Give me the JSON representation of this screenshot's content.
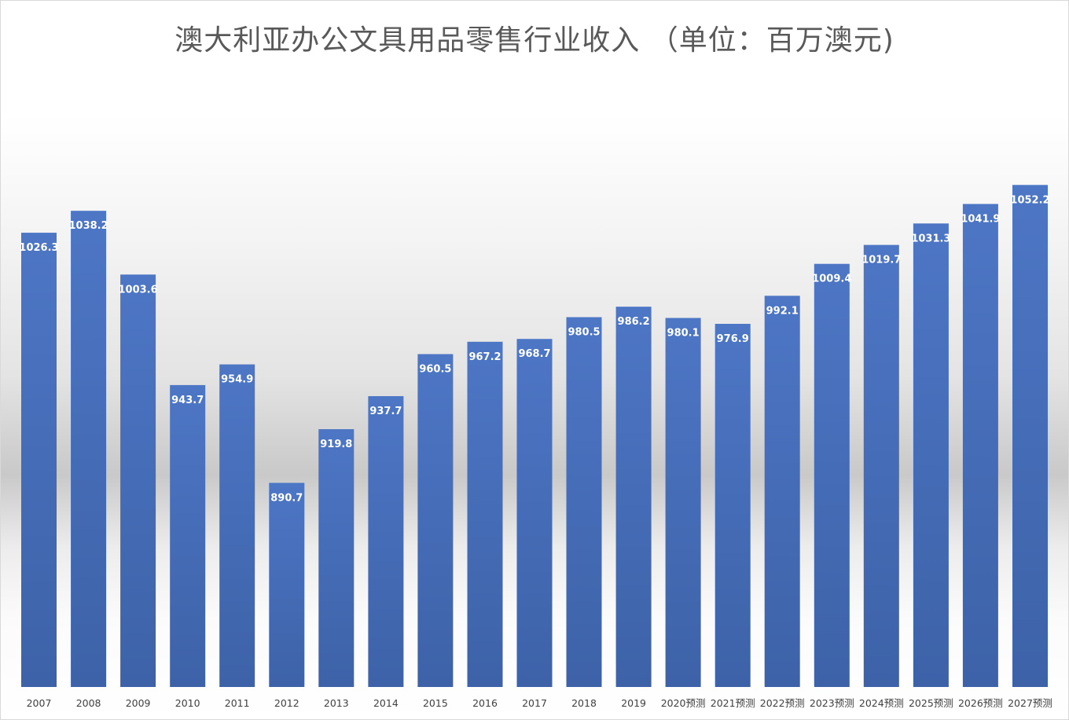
{
  "chart_data": {
    "type": "bar",
    "title": "澳大利亚办公文具用品零售行业收入 （单位：百万澳元)",
    "categories": [
      "2007",
      "2008",
      "2009",
      "2010",
      "2011",
      "2012",
      "2013",
      "2014",
      "2015",
      "2016",
      "2017",
      "2018",
      "2019",
      "2020预测",
      "2021预测",
      "2022预测",
      "2023预测",
      "2024预测",
      "2025预测",
      "2026预测",
      "2027预测"
    ],
    "values": [
      1026.3,
      1038.2,
      1003.6,
      943.7,
      954.9,
      890.7,
      919.8,
      937.7,
      960.5,
      967.2,
      968.7,
      980.5,
      986.2,
      980.1,
      976.9,
      992.1,
      1009.4,
      1019.7,
      1031.3,
      1041.9,
      1052.2
    ],
    "value_labels": [
      "1026.3",
      "1038.2",
      "1003.6",
      "943.7",
      "954.9",
      "890.7",
      "919.8",
      "937.7",
      "960.5",
      "967.2",
      "968.7",
      "980.5",
      "986.2",
      "980.1",
      "976.9",
      "992.1",
      "1009.4",
      "1019.7",
      "1031.3",
      "1041.9",
      "1052.2"
    ],
    "ylim": [
      780,
      1060
    ],
    "grid": false,
    "legend": "none",
    "colors": {
      "bar_top": "#4d76c5",
      "bar_bottom": "#3d62a8",
      "label": "#ffffff",
      "tick": "#404040",
      "title": "#595959"
    }
  }
}
